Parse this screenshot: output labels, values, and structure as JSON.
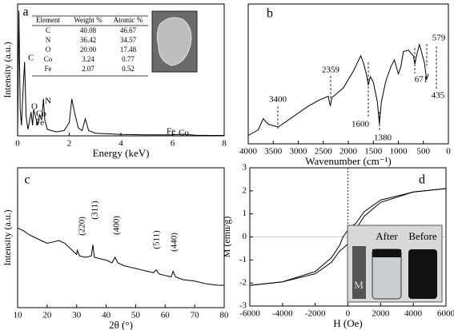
{
  "chart_data": [
    {
      "type": "line",
      "label": "a",
      "x_label": "Energy (keV)",
      "y_label": "Intensity (a.u.)",
      "xlim": [
        0,
        8
      ],
      "xticks": [
        0,
        2,
        4,
        6,
        8
      ],
      "ylim": [
        0,
        100
      ],
      "x": [
        0,
        0.05,
        0.1,
        0.15,
        0.2,
        0.27,
        0.33,
        0.4,
        0.45,
        0.52,
        0.58,
        0.62,
        0.7,
        0.78,
        0.85,
        0.93,
        1.0,
        1.05,
        1.15,
        1.3,
        1.5,
        1.8,
        2.0,
        2.1,
        2.2,
        2.35,
        2.5,
        2.62,
        2.75,
        3.0,
        3.5,
        4,
        5,
        6,
        6.4,
        6.9,
        7.5,
        8
      ],
      "series": [
        {
          "color": "#000000",
          "values": [
            0,
            95,
            20,
            8,
            30,
            56,
            15,
            5,
            10,
            18,
            8,
            20,
            14,
            8,
            16,
            12,
            28,
            12,
            5,
            4,
            3,
            4,
            10,
            28,
            18,
            6,
            4,
            13,
            4,
            2,
            1.5,
            1,
            0.8,
            0.8,
            1.2,
            0.5,
            0.3,
            0.3
          ]
        }
      ],
      "annotations": [
        "C",
        "O",
        "Co",
        "Fe",
        "N",
        "Fe",
        "Co"
      ],
      "table": {
        "columns": [
          "Element",
          "Weight %",
          "Atomic %"
        ],
        "rows": [
          [
            "C",
            "40.08",
            "46.67"
          ],
          [
            "N",
            "36.42",
            "34.57"
          ],
          [
            "O",
            "20.00",
            "17.48"
          ],
          [
            "Co",
            "3.24",
            "0.77"
          ],
          [
            "Fe",
            "2.07",
            "0.52"
          ]
        ]
      }
    },
    {
      "type": "line",
      "label": "b",
      "x_label": "Wavenumber (cm⁻¹)",
      "xlim": [
        4000,
        0
      ],
      "xticks": [
        4000,
        3500,
        3000,
        2500,
        2000,
        1500,
        1000,
        500,
        0
      ],
      "ylim": [
        0,
        100
      ],
      "x": [
        4000,
        3800,
        3700,
        3600,
        3400,
        3200,
        3000,
        2800,
        2600,
        2400,
        2359,
        2330,
        2100,
        1900,
        1750,
        1700,
        1640,
        1600,
        1560,
        1500,
        1420,
        1380,
        1340,
        1250,
        1150,
        1080,
        1000,
        950,
        900,
        800,
        700,
        671,
        630,
        579,
        540,
        480,
        435,
        400
      ],
      "series": [
        {
          "color": "#000000",
          "values": [
            6,
            10,
            18,
            14,
            12,
            17,
            22,
            27,
            31,
            34,
            27,
            33,
            40,
            52,
            63,
            58,
            50,
            42,
            48,
            44,
            30,
            14,
            30,
            45,
            55,
            60,
            50,
            55,
            66,
            67,
            63,
            57,
            64,
            71,
            66,
            58,
            46,
            50
          ]
        }
      ],
      "annotations": [
        "3400",
        "2359",
        "1600",
        "1380",
        "671",
        "579",
        "435"
      ]
    },
    {
      "type": "line",
      "label": "c",
      "x_label": "2θ (°)",
      "y_label": "Intensity (a.u.)",
      "xlim": [
        10,
        80
      ],
      "xticks": [
        10,
        20,
        30,
        40,
        50,
        60,
        70,
        80
      ],
      "ylim": [
        0,
        100
      ],
      "x": [
        10,
        12,
        14,
        16,
        18,
        20,
        22,
        24,
        26,
        28,
        29,
        30,
        30.2,
        31,
        33,
        35,
        35.5,
        36,
        38,
        40,
        42,
        43,
        44,
        46,
        48,
        50,
        52,
        54,
        56,
        57,
        58,
        60,
        62,
        62.7,
        63.5,
        66,
        70,
        74,
        78,
        80
      ],
      "series": [
        {
          "color": "#000000",
          "values": [
            57,
            55,
            52,
            50,
            48,
            46,
            47,
            48,
            46,
            42,
            40,
            38,
            41,
            37,
            36,
            37,
            45,
            36,
            35,
            34,
            32,
            36,
            32,
            30,
            29,
            28,
            27,
            26,
            25,
            27,
            24,
            23,
            22,
            26,
            22,
            20,
            19,
            17,
            16,
            16
          ]
        }
      ],
      "annotations": [
        "(220)",
        "(311)",
        "(400)",
        "(511)",
        "(440)"
      ]
    },
    {
      "type": "line",
      "label": "d",
      "x_label": "H (Oe)",
      "y_label": "M (emu/g)",
      "zero_lines": true,
      "xlim": [
        -6000,
        6000
      ],
      "xticks": [
        -6000,
        -4000,
        -2000,
        0,
        2000,
        4000,
        6000
      ],
      "ylim": [
        -3,
        3
      ],
      "yticks": [
        -3,
        -2,
        -1,
        0,
        1,
        2,
        3
      ],
      "x": [
        -6000,
        -4000,
        -2000,
        -1000,
        -500,
        -300,
        0,
        300,
        500,
        1000,
        2000,
        4000,
        6000
      ],
      "series": [
        {
          "color": "#000000",
          "values": [
            -2.1,
            -1.95,
            -1.5,
            -0.9,
            -0.35,
            0,
            0.3,
            0.5,
            0.6,
            1.1,
            1.6,
            1.95,
            2.1
          ]
        },
        {
          "color": "#000000",
          "values": [
            -2.1,
            -1.95,
            -1.6,
            -1.1,
            -0.6,
            -0.5,
            -0.3,
            0,
            0.35,
            0.9,
            1.5,
            1.95,
            2.1
          ]
        }
      ],
      "inset": [
        "After",
        "Before",
        "M"
      ]
    }
  ]
}
